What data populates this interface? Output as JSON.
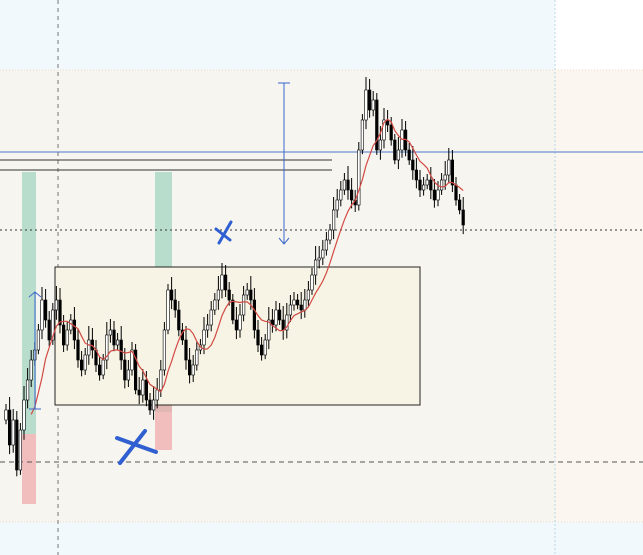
{
  "chart_data": {
    "type": "candlestick",
    "title": "",
    "xlabel": "",
    "ylabel": "",
    "grid": false,
    "ylim": [
      0,
      555
    ],
    "colors": {
      "background_top": "#f2f9fd",
      "background_zone": "#f6f5ef",
      "background_right": "#fbf6f0",
      "candle_up": "#ffffff",
      "candle_down": "#000000",
      "moving_average": "#d24a43",
      "range_box_fill": "#f7f4e6",
      "bullish_zone": "#9ed3bf",
      "bearish_zone": "#f1a7a8",
      "annotation_blue": "#3a66cc",
      "level_line": "#4a78c9"
    },
    "closes": [
      410,
      445,
      420,
      470,
      430,
      400,
      380,
      360,
      350,
      330,
      300,
      320,
      340,
      310,
      300,
      325,
      345,
      330,
      320,
      340,
      360,
      370,
      355,
      340,
      350,
      365,
      375,
      360,
      335,
      330,
      345,
      340,
      360,
      380,
      370,
      350,
      390,
      395,
      380,
      400,
      410,
      400,
      390,
      370,
      330,
      290,
      300,
      310,
      330,
      340,
      360,
      375,
      365,
      350,
      345,
      330,
      325,
      310,
      300,
      290,
      275,
      290,
      300,
      320,
      330,
      315,
      295,
      290,
      300,
      330,
      345,
      355,
      340,
      320,
      325,
      310,
      320,
      330,
      315,
      305,
      300,
      305,
      310,
      300,
      290,
      275,
      260,
      258,
      250,
      240,
      230,
      210,
      200,
      190,
      180,
      190,
      200,
      205,
      150,
      120,
      90,
      110,
      100,
      150,
      140,
      120,
      125,
      140,
      160,
      150,
      130,
      150,
      160,
      170,
      180,
      190,
      185,
      180,
      190,
      200,
      190,
      180,
      175,
      160,
      185,
      200,
      210,
      225
    ]
  },
  "annotations": {
    "horizontal_levels": [
      "resistance",
      "current-price",
      "support"
    ],
    "range_box": "consolidation",
    "measure_arrows": [
      "projection-arrow",
      "left-measure-arrow"
    ],
    "marks": [
      "cross-low",
      "cross-high"
    ]
  }
}
